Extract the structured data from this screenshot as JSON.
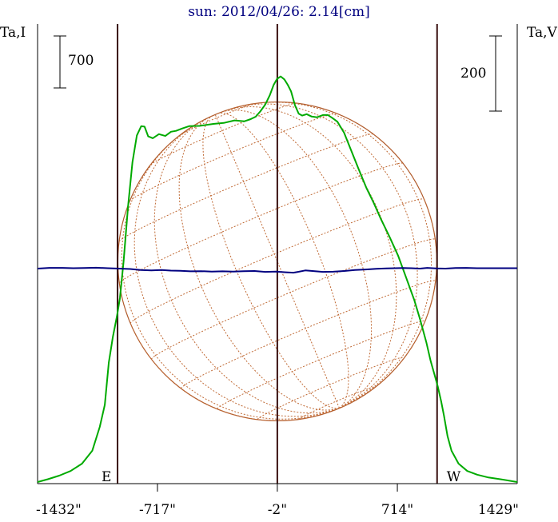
{
  "chart_data": {
    "type": "line",
    "title": "sun: 2012/04/26: 2.14[cm]",
    "left_axis_label": "Ta,I",
    "right_axis_label": "Ta,V",
    "left_scale_bar_label": "700",
    "right_scale_bar_label": "200",
    "xlim": [
      -1432,
      1429
    ],
    "x_ticks": [
      {
        "value": -1432,
        "label": "-1432\""
      },
      {
        "value": -717,
        "label": "-717\""
      },
      {
        "value": -2,
        "label": "-2\""
      },
      {
        "value": 714,
        "label": "714\""
      },
      {
        "value": 1429,
        "label": "1429\""
      }
    ],
    "limb_markers": [
      {
        "value": -955,
        "label": "E"
      },
      {
        "value": 951,
        "label": "W"
      }
    ],
    "center_marker": -2,
    "solar_disk": {
      "center_x": -2,
      "radius": 951,
      "grid": "heliographic"
    },
    "series": [
      {
        "name": "I",
        "color": "#00aa00",
        "y_units": "relative",
        "points": [
          [
            -1432,
            0.0
          ],
          [
            -1371,
            0.015
          ],
          [
            -1303,
            0.035
          ],
          [
            -1235,
            0.06
          ],
          [
            -1167,
            0.1
          ],
          [
            -1106,
            0.17
          ],
          [
            -1061,
            0.3
          ],
          [
            -1031,
            0.42
          ],
          [
            -1007,
            0.65
          ],
          [
            -983,
            0.79
          ],
          [
            -959,
            0.9
          ],
          [
            -941,
            1.0
          ],
          [
            -919,
            1.2
          ],
          [
            -892,
            1.5
          ],
          [
            -866,
            1.74
          ],
          [
            -840,
            1.885
          ],
          [
            -814,
            1.935
          ],
          [
            -794,
            1.933
          ],
          [
            -772,
            1.88
          ],
          [
            -745,
            1.87
          ],
          [
            -708,
            1.892
          ],
          [
            -670,
            1.882
          ],
          [
            -636,
            1.905
          ],
          [
            -606,
            1.91
          ],
          [
            -569,
            1.923
          ],
          [
            -526,
            1.936
          ],
          [
            -467,
            1.937
          ],
          [
            -384,
            1.948
          ],
          [
            -322,
            1.953
          ],
          [
            -257,
            1.967
          ],
          [
            -198,
            1.962
          ],
          [
            -161,
            1.974
          ],
          [
            -131,
            1.987
          ],
          [
            -104,
            2.015
          ],
          [
            -74,
            2.053
          ],
          [
            -47,
            2.104
          ],
          [
            -24,
            2.16
          ],
          [
            -4,
            2.192
          ],
          [
            18,
            2.206
          ],
          [
            40,
            2.19
          ],
          [
            60,
            2.161
          ],
          [
            80,
            2.125
          ],
          [
            103,
            2.05
          ],
          [
            126,
            2.003
          ],
          [
            147,
            1.993
          ],
          [
            173,
            2.001
          ],
          [
            203,
            1.988
          ],
          [
            235,
            1.984
          ],
          [
            270,
            1.996
          ],
          [
            300,
            1.996
          ],
          [
            326,
            1.98
          ],
          [
            356,
            1.96
          ],
          [
            396,
            1.9
          ],
          [
            440,
            1.8
          ],
          [
            484,
            1.7
          ],
          [
            529,
            1.6
          ],
          [
            572,
            1.52
          ],
          [
            616,
            1.43
          ],
          [
            664,
            1.34
          ],
          [
            719,
            1.23
          ],
          [
            767,
            1.11
          ],
          [
            815,
            0.99
          ],
          [
            851,
            0.88
          ],
          [
            887,
            0.76
          ],
          [
            912,
            0.66
          ],
          [
            937,
            0.58
          ],
          [
            955,
            0.52
          ],
          [
            975,
            0.44
          ],
          [
            992,
            0.36
          ],
          [
            1013,
            0.25
          ],
          [
            1037,
            0.17
          ],
          [
            1079,
            0.1
          ],
          [
            1131,
            0.06
          ],
          [
            1190,
            0.04
          ],
          [
            1257,
            0.025
          ],
          [
            1329,
            0.015
          ],
          [
            1429,
            0.0
          ]
        ]
      },
      {
        "name": "V",
        "color": "#000080",
        "y_units": "relative",
        "points": [
          [
            -1432,
            0.0
          ],
          [
            -1363,
            0.004
          ],
          [
            -1283,
            0.004
          ],
          [
            -1219,
            0.002
          ],
          [
            -1153,
            0.003
          ],
          [
            -1083,
            0.005
          ],
          [
            -1013,
            0.002
          ],
          [
            -945,
            0.0
          ],
          [
            -880,
            -0.002
          ],
          [
            -817,
            -0.008
          ],
          [
            -753,
            -0.01
          ],
          [
            -693,
            -0.008
          ],
          [
            -637,
            -0.011
          ],
          [
            -581,
            -0.012
          ],
          [
            -521,
            -0.015
          ],
          [
            -457,
            -0.014
          ],
          [
            -393,
            -0.016
          ],
          [
            -329,
            -0.015
          ],
          [
            -266,
            -0.016
          ],
          [
            -202,
            -0.014
          ],
          [
            -138,
            -0.013
          ],
          [
            -74,
            -0.018
          ],
          [
            -10,
            -0.016
          ],
          [
            49,
            -0.02
          ],
          [
            94,
            -0.022
          ],
          [
            121,
            -0.018
          ],
          [
            165,
            -0.01
          ],
          [
            208,
            -0.013
          ],
          [
            270,
            -0.018
          ],
          [
            331,
            -0.017
          ],
          [
            397,
            -0.013
          ],
          [
            461,
            -0.008
          ],
          [
            525,
            -0.005
          ],
          [
            589,
            -0.001
          ],
          [
            649,
            0.001
          ],
          [
            699,
            0.002
          ],
          [
            749,
            0.003
          ],
          [
            797,
            0.002
          ],
          [
            848,
            0.0
          ],
          [
            892,
            0.004
          ],
          [
            945,
            0.001
          ],
          [
            1001,
            0.0
          ],
          [
            1061,
            0.003
          ],
          [
            1125,
            0.004
          ],
          [
            1189,
            0.002
          ],
          [
            1253,
            0.002
          ],
          [
            1317,
            0.002
          ],
          [
            1381,
            0.002
          ],
          [
            1429,
            0.002
          ]
        ]
      }
    ]
  }
}
